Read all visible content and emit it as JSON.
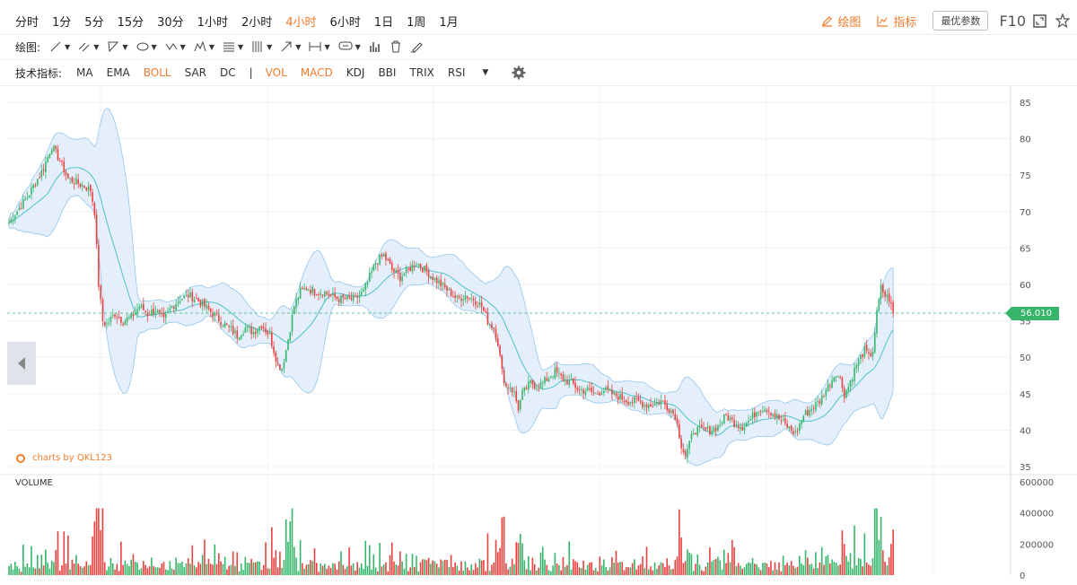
{
  "toolbar": {
    "timeframes": [
      "分时",
      "1分",
      "5分",
      "15分",
      "30分",
      "1小时",
      "2小时",
      "4小时",
      "6小时",
      "1日",
      "1周",
      "1月"
    ],
    "active_timeframe": "4小时",
    "draw_label": "绘图",
    "indicator_tool_label": "指标",
    "params_label": "最优参数",
    "f10_label": "F10",
    "drawing_label": "绘图:",
    "tech_label": "技术指标:",
    "indicators": [
      "MA",
      "EMA",
      "BOLL",
      "SAR",
      "DC",
      "|",
      "VOL",
      "MACD",
      "KDJ",
      "BBI",
      "TRIX",
      "RSI"
    ],
    "active_indicators": [
      "BOLL",
      "VOL",
      "MACD"
    ]
  },
  "brand": "charts by QKL123",
  "volume_label": "VOLUME",
  "last_price": "56.010",
  "colors": {
    "accent": "#f37b2c",
    "up": "#36b56a",
    "down": "#e8423f",
    "band": "#cfe4f7",
    "band_line": "#8ec3ec",
    "mid": "#4fc1c9"
  },
  "chart_data": {
    "type": "line",
    "price_axis": {
      "min": 35,
      "max": 85,
      "ticks": [
        85,
        80,
        75,
        70,
        65,
        60,
        55,
        50,
        45,
        40,
        35
      ]
    },
    "volume_axis": {
      "min": 0,
      "max": 600000,
      "ticks": [
        600000,
        400000,
        200000,
        0
      ],
      "tick_labels": [
        "600000",
        "400000",
        "200000",
        "0"
      ]
    },
    "series": [
      {
        "points": [
          [
            0,
            68.5
          ],
          [
            5,
            70.5
          ],
          [
            9,
            72
          ],
          [
            13,
            74
          ],
          [
            17,
            76
          ],
          [
            21,
            79
          ],
          [
            25,
            77
          ],
          [
            29,
            74.5
          ],
          [
            33,
            74
          ],
          [
            37,
            73.5
          ],
          [
            40,
            73
          ],
          [
            42,
            70
          ],
          [
            44,
            60
          ],
          [
            46,
            55
          ],
          [
            48,
            54.5
          ],
          [
            52,
            56
          ],
          [
            56,
            55
          ],
          [
            60,
            55.5
          ],
          [
            64,
            57
          ],
          [
            68,
            56
          ],
          [
            72,
            56.5
          ],
          [
            76,
            55
          ],
          [
            80,
            57
          ],
          [
            84,
            58
          ],
          [
            88,
            58.5
          ],
          [
            92,
            58
          ],
          [
            96,
            57
          ],
          [
            100,
            56
          ],
          [
            104,
            55
          ],
          [
            108,
            54
          ],
          [
            112,
            53
          ],
          [
            116,
            54
          ],
          [
            120,
            53.5
          ],
          [
            124,
            54.5
          ],
          [
            128,
            53
          ],
          [
            132,
            49
          ],
          [
            134,
            48.5
          ],
          [
            136,
            51
          ],
          [
            138,
            54
          ],
          [
            140,
            57
          ],
          [
            143,
            59
          ],
          [
            146,
            59.5
          ],
          [
            150,
            59
          ],
          [
            154,
            59
          ],
          [
            158,
            58.5
          ],
          [
            162,
            58
          ],
          [
            166,
            58
          ],
          [
            170,
            58
          ],
          [
            174,
            59
          ],
          [
            177,
            61
          ],
          [
            180,
            63
          ],
          [
            184,
            64
          ],
          [
            188,
            62
          ],
          [
            192,
            61
          ],
          [
            196,
            62
          ],
          [
            200,
            63
          ],
          [
            204,
            62
          ],
          [
            208,
            61
          ],
          [
            212,
            60
          ],
          [
            216,
            59
          ],
          [
            220,
            58
          ],
          [
            224,
            58.5
          ],
          [
            228,
            58
          ],
          [
            232,
            57
          ],
          [
            235,
            55
          ],
          [
            238,
            54
          ],
          [
            240,
            52
          ],
          [
            242,
            48
          ],
          [
            244,
            46
          ],
          [
            246,
            46
          ],
          [
            248,
            45
          ],
          [
            250,
            43
          ],
          [
            252,
            45
          ],
          [
            256,
            46.5
          ],
          [
            260,
            46
          ],
          [
            264,
            47
          ],
          [
            268,
            48
          ],
          [
            272,
            47
          ],
          [
            276,
            46.5
          ],
          [
            280,
            45.5
          ],
          [
            284,
            45.5
          ],
          [
            288,
            45
          ],
          [
            292,
            45.5
          ],
          [
            296,
            45
          ],
          [
            300,
            44.5
          ],
          [
            304,
            44
          ],
          [
            308,
            44
          ],
          [
            312,
            43.5
          ],
          [
            316,
            43.5
          ],
          [
            320,
            44
          ],
          [
            324,
            43
          ],
          [
            327,
            42
          ],
          [
            330,
            38
          ],
          [
            332,
            36.5
          ],
          [
            334,
            38
          ],
          [
            336,
            40
          ],
          [
            340,
            40
          ],
          [
            344,
            40
          ],
          [
            348,
            40.5
          ],
          [
            352,
            42
          ],
          [
            356,
            41
          ],
          [
            360,
            40.5
          ],
          [
            364,
            41.5
          ],
          [
            368,
            43
          ],
          [
            372,
            43
          ],
          [
            376,
            42
          ],
          [
            380,
            41
          ],
          [
            384,
            40
          ],
          [
            386,
            39.5
          ],
          [
            390,
            42
          ],
          [
            394,
            43
          ],
          [
            398,
            44
          ],
          [
            402,
            46
          ],
          [
            406,
            48
          ],
          [
            408,
            47
          ],
          [
            410,
            45
          ],
          [
            412,
            46
          ],
          [
            416,
            49
          ],
          [
            420,
            51
          ],
          [
            422,
            50
          ],
          [
            424,
            51
          ],
          [
            426,
            56
          ],
          [
            428,
            59.5
          ],
          [
            430,
            58.5
          ],
          [
            432,
            58
          ],
          [
            434,
            56
          ]
        ]
      }
    ]
  }
}
